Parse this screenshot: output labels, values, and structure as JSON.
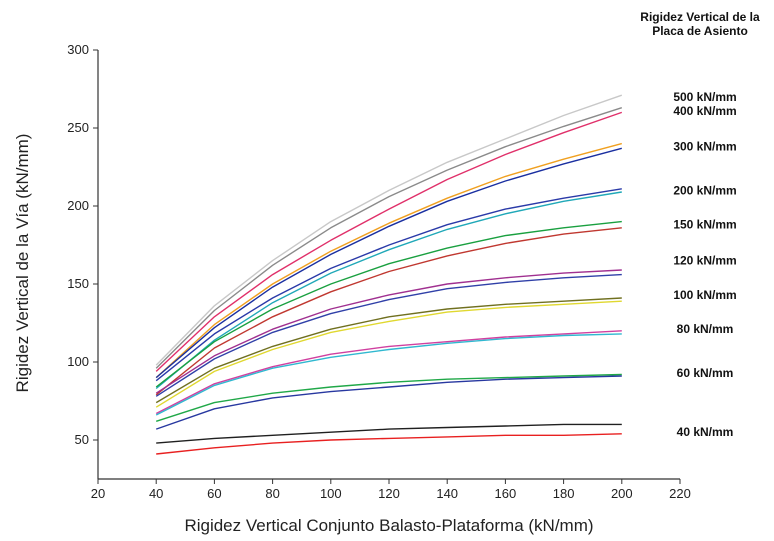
{
  "chart_data": {
    "type": "line",
    "title": "",
    "xlabel": "Rigidez Vertical Conjunto Balasto-Plataforma (kN/mm)",
    "ylabel": "Rigidez Vertical de la Vía (kN/mm)",
    "xlim": [
      20,
      220
    ],
    "ylim": [
      25,
      300
    ],
    "xticks": [
      "20",
      "40",
      "60",
      "80",
      "100",
      "120",
      "140",
      "160",
      "180",
      "200",
      "220"
    ],
    "yticks": [
      "50",
      "100",
      "150",
      "200",
      "250",
      "300"
    ],
    "grid": false,
    "legend_title": [
      "Rigidez Vertical de la",
      "Placa de Asiento"
    ],
    "x": [
      40,
      60,
      80,
      100,
      120,
      140,
      160,
      180,
      200
    ],
    "groups": [
      {
        "label": "500 kN/mm",
        "y": 270
      },
      {
        "label": "400 kN/mm",
        "y": 261
      },
      {
        "label": "300 kN/mm",
        "y": 238
      },
      {
        "label": "200 kN/mm",
        "y": 210
      },
      {
        "label": "150 kN/mm",
        "y": 188
      },
      {
        "label": "120 kN/mm",
        "y": 165
      },
      {
        "label": "100 kN/mm",
        "y": 143
      },
      {
        "label": "80 kN/mm",
        "y": 121
      },
      {
        "label": "60 kN/mm",
        "y": 93
      },
      {
        "label": "40 kN/mm",
        "y": 55
      }
    ],
    "series": [
      {
        "color": "#c8c8c8",
        "values": [
          98,
          136,
          165,
          190,
          210,
          228,
          243,
          258,
          271
        ]
      },
      {
        "color": "#8a8a8a",
        "values": [
          96,
          133,
          162,
          186,
          206,
          223,
          238,
          251,
          263
        ]
      },
      {
        "color": "#e0306a",
        "values": [
          94,
          129,
          156,
          178,
          198,
          217,
          233,
          247,
          260
        ]
      },
      {
        "color": "#f0a020",
        "values": [
          90,
          124,
          150,
          171,
          189,
          205,
          219,
          230,
          240
        ]
      },
      {
        "color": "#1a2fa0",
        "values": [
          90,
          122,
          148,
          169,
          187,
          203,
          216,
          227,
          237
        ]
      },
      {
        "color": "#2a3aa8",
        "values": [
          88,
          118,
          141,
          160,
          175,
          188,
          198,
          205,
          211
        ]
      },
      {
        "color": "#20a8b8",
        "values": [
          83,
          114,
          138,
          157,
          172,
          185,
          195,
          203,
          209
        ]
      },
      {
        "color": "#1aa040",
        "values": [
          84,
          113,
          134,
          150,
          163,
          173,
          181,
          186,
          190
        ]
      },
      {
        "color": "#c03830",
        "values": [
          79,
          109,
          129,
          145,
          158,
          168,
          176,
          182,
          186
        ]
      },
      {
        "color": "#a03090",
        "values": [
          80,
          104,
          121,
          134,
          143,
          150,
          154,
          157,
          159
        ]
      },
      {
        "color": "#3040a8",
        "values": [
          78,
          102,
          119,
          131,
          140,
          147,
          151,
          154,
          156
        ]
      },
      {
        "color": "#707020",
        "values": [
          74,
          96,
          110,
          121,
          129,
          134,
          137,
          139,
          141
        ]
      },
      {
        "color": "#e0d830",
        "values": [
          71,
          94,
          108,
          119,
          126,
          132,
          135,
          137,
          139
        ]
      },
      {
        "color": "#d040a0",
        "values": [
          67,
          86,
          97,
          105,
          110,
          113,
          116,
          118,
          120
        ]
      },
      {
        "color": "#30b8d0",
        "values": [
          66,
          85,
          96,
          103,
          108,
          112,
          115,
          117,
          118
        ]
      },
      {
        "color": "#20a848",
        "values": [
          62,
          74,
          80,
          84,
          87,
          89,
          90,
          91,
          92
        ]
      },
      {
        "color": "#2838a0",
        "values": [
          57,
          70,
          77,
          81,
          84,
          87,
          89,
          90,
          91
        ]
      },
      {
        "color": "#202020",
        "values": [
          48,
          51,
          53,
          55,
          57,
          58,
          59,
          60,
          60
        ]
      },
      {
        "color": "#e82020",
        "values": [
          41,
          45,
          48,
          50,
          51,
          52,
          53,
          53,
          54
        ]
      }
    ]
  }
}
